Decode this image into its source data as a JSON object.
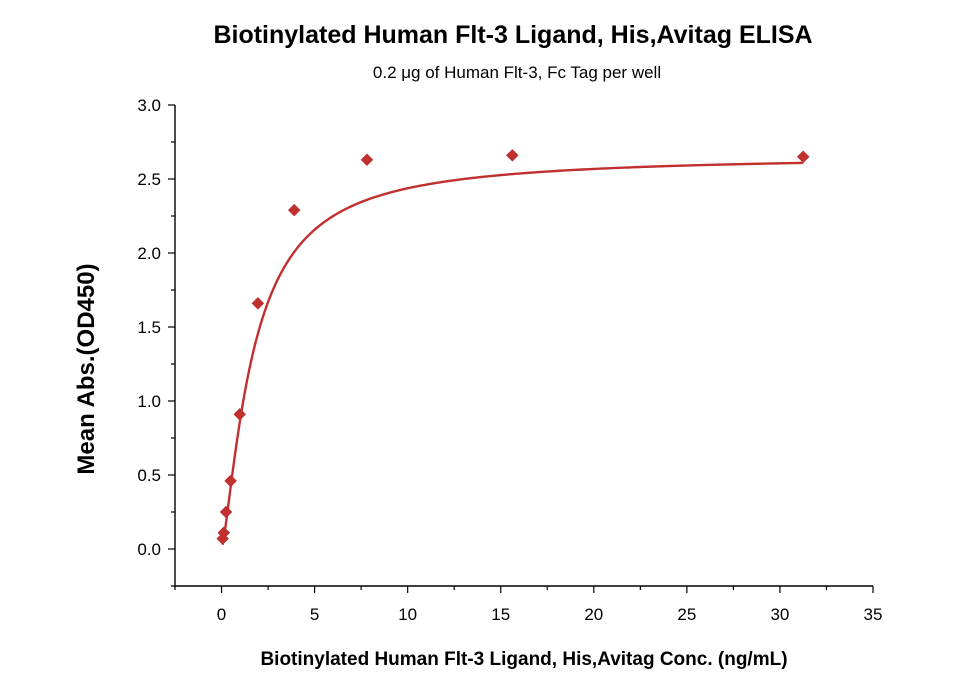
{
  "chart_data": {
    "type": "scatter",
    "title": "Biotinylated Human Flt-3 Ligand, His,Avitag ELISA",
    "subtitle": "0.2 μg of Human Flt-3, Fc Tag per well",
    "xlabel": "Biotinylated Human Flt-3 Ligand, His,Avitag Conc. (ng/mL)",
    "ylabel": "Mean Abs.(OD450)",
    "xlim": [
      -2.5,
      35
    ],
    "ylim": [
      -0.25,
      3.0
    ],
    "x_ticks": [
      0,
      5,
      10,
      15,
      20,
      25,
      30,
      35
    ],
    "x_tick_labels": [
      "0",
      "5",
      "10",
      "15",
      "20",
      "25",
      "30",
      "35"
    ],
    "y_ticks": [
      0.0,
      0.5,
      1.0,
      1.5,
      2.0,
      2.5,
      3.0
    ],
    "y_tick_labels": [
      "0.0",
      "0.5",
      "1.0",
      "1.5",
      "2.0",
      "2.5",
      "3.0"
    ],
    "grid": false,
    "legend": "none",
    "marker": "diamond",
    "series": [
      {
        "color": "#c0302f",
        "points": [
          {
            "x": 0.061,
            "y": 0.07
          },
          {
            "x": 0.122,
            "y": 0.11
          },
          {
            "x": 0.244,
            "y": 0.25
          },
          {
            "x": 0.488,
            "y": 0.46
          },
          {
            "x": 0.977,
            "y": 0.91
          },
          {
            "x": 1.953,
            "y": 1.66
          },
          {
            "x": 3.906,
            "y": 2.29
          },
          {
            "x": 7.813,
            "y": 2.63
          },
          {
            "x": 15.625,
            "y": 2.66
          },
          {
            "x": 31.25,
            "y": 2.65
          }
        ],
        "fit": "four-parameter-logistic"
      }
    ]
  }
}
